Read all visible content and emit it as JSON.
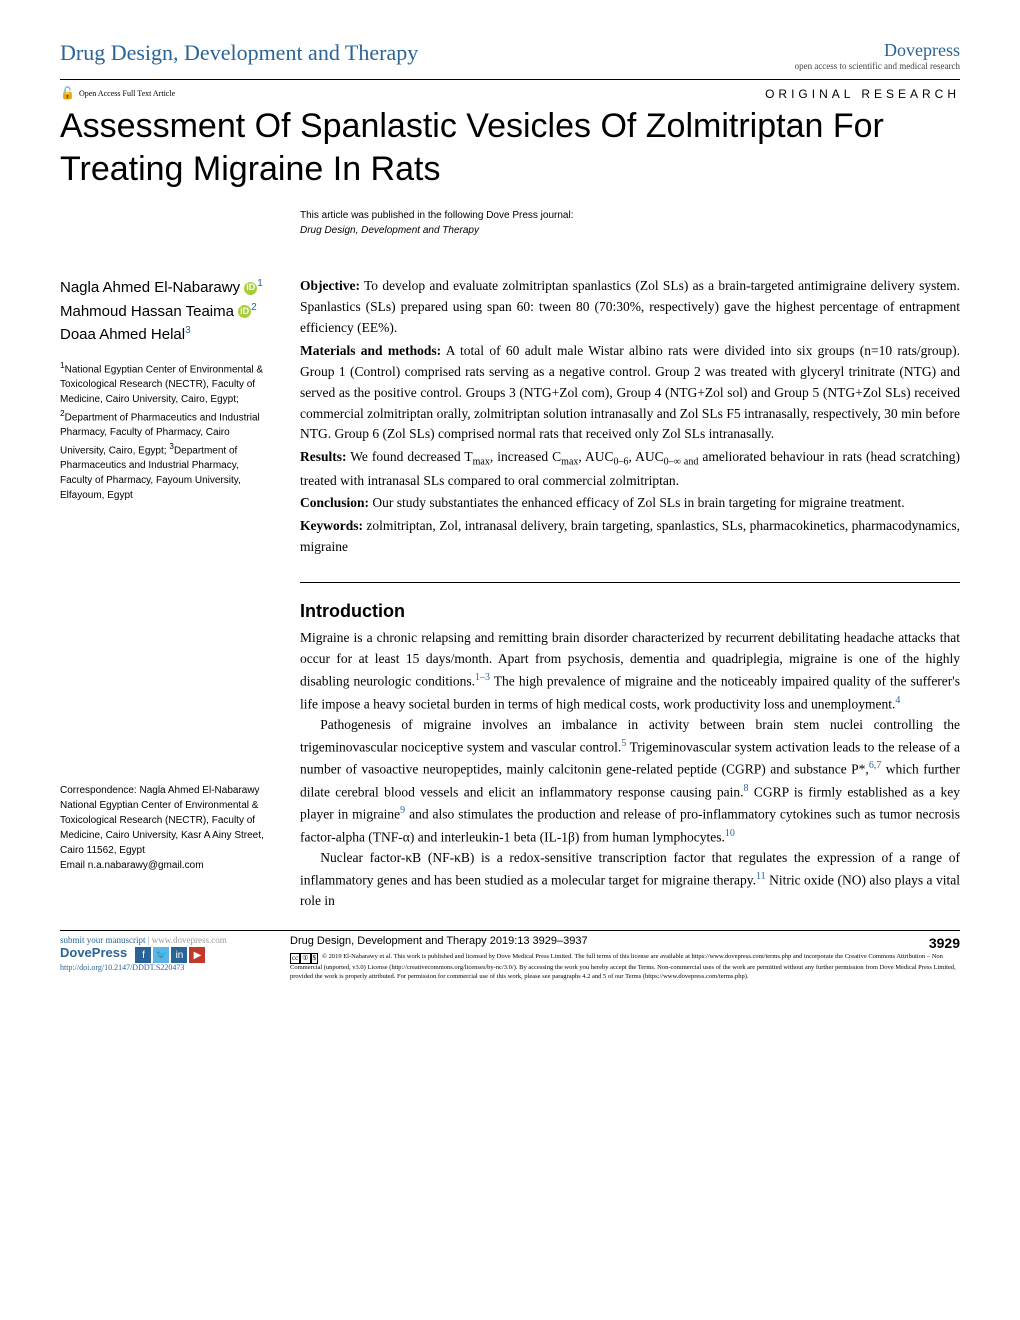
{
  "header": {
    "journal_name": "Drug Design, Development and Therapy",
    "brand": "Dovepress",
    "brand_sub": "open access to scientific and medical research",
    "open_access_label": "Open Access Full Text Article",
    "article_type": "ORIGINAL RESEARCH"
  },
  "title": "Assessment Of Spanlastic Vesicles Of Zolmitriptan For Treating Migraine In Rats",
  "pub_note": "This article was published in the following Dove Press journal:",
  "pub_note_journal": "Drug Design, Development and Therapy",
  "authors": [
    {
      "name": "Nagla Ahmed El-Nabarawy",
      "orcid": true,
      "aff": "1"
    },
    {
      "name": "Mahmoud Hassan Teaima",
      "orcid": true,
      "aff": "2"
    },
    {
      "name": "Doaa Ahmed Helal",
      "orcid": false,
      "aff": "3"
    }
  ],
  "affiliations_html": "<sup>1</sup>National Egyptian Center of Environmental & Toxicological Research (NECTR), Faculty of Medicine, Cairo University, Cairo, Egypt; <sup>2</sup>Department of Pharmaceutics and Industrial Pharmacy, Faculty of Pharmacy, Cairo University, Cairo, Egypt; <sup>3</sup>Department of Pharmaceutics and Industrial Pharmacy, Faculty of Pharmacy, Fayoum University, Elfayoum, Egypt",
  "correspondence": {
    "label": "Correspondence: Nagla Ahmed El-Nabarawy",
    "address": "National Egyptian Center of Environmental & Toxicological Research (NECTR), Faculty of Medicine, Cairo University, Kasr A Ainy Street, Cairo 11562, Egypt",
    "email": "Email n.a.nabarawy@gmail.com"
  },
  "abstract": {
    "objective_label": "Objective:",
    "objective": " To develop and evaluate zolmitriptan spanlastics (Zol SLs) as a brain-targeted antimigraine delivery system. Spanlastics (SLs) prepared using span 60: tween 80 (70:30%, respectively) gave the highest percentage of entrapment efficiency (EE%).",
    "methods_label": "Materials and methods:",
    "methods": " A total of 60 adult male Wistar albino rats were divided into six groups (n=10 rats/group). Group 1 (Control) comprised rats serving as a negative control. Group 2 was treated with glyceryl trinitrate (NTG) and served as the positive control. Groups 3 (NTG+Zol com), Group 4 (NTG+Zol sol) and Group 5 (NTG+Zol SLs) received commercial zolmitriptan orally, zolmitriptan solution intranasally and Zol SLs F5 intranasally, respectively, 30 min before NTG. Group 6 (Zol SLs) comprised normal rats that received only Zol SLs intranasally.",
    "results_label": "Results:",
    "results_pre": " We found decreased T",
    "results_post": " ameliorated behaviour in rats (head scratching) treated with intranasal SLs compared to oral commercial zolmitriptan.",
    "conclusion_label": "Conclusion:",
    "conclusion": " Our study substantiates the enhanced efficacy of Zol SLs in brain targeting for migraine treatment.",
    "keywords_label": "Keywords:",
    "keywords": " zolmitriptan, Zol, intranasal delivery, brain targeting, spanlastics, SLs, pharmacokinetics, pharmacodynamics, migraine"
  },
  "introduction": {
    "heading": "Introduction",
    "p1_a": "Migraine is a chronic relapsing and remitting brain disorder characterized by recurrent debilitating headache attacks that occur for at least 15 days/month. Apart from psychosis, dementia and quadriplegia, migraine is one of the highly disabling neurologic conditions.",
    "p1_ref1": "1–3",
    "p1_b": " The high prevalence of migraine and the noticeably impaired quality of the sufferer's life impose a heavy societal burden in terms of high medical costs, work productivity loss and unemployment.",
    "p1_ref2": "4",
    "p2_a": "Pathogenesis of migraine involves an imbalance in activity between brain stem nuclei controlling the trigeminovascular nociceptive system and vascular control.",
    "p2_ref1": "5",
    "p2_b": " Trigeminovascular system activation leads to the release of a number of vasoactive neuropeptides, mainly calcitonin gene-related peptide (CGRP) and substance P*,",
    "p2_ref2": "6,7",
    "p2_c": " which further dilate cerebral blood vessels and elicit an inflammatory response causing pain.",
    "p2_ref3": "8",
    "p2_d": " CGRP is firmly established as a key player in migraine",
    "p2_ref4": "9",
    "p2_e": " and also stimulates the production and release of pro-inflammatory cytokines such as tumor necrosis factor-alpha (TNF-α) and interleukin-1 beta (IL-1β) from human lymphocytes.",
    "p2_ref5": "10",
    "p3_a": "Nuclear factor-κB (NF-κB) is a redox-sensitive transcription factor that regulates the expression of a range of inflammatory genes and has been studied as a molecular target for migraine therapy.",
    "p3_ref1": "11",
    "p3_b": " Nitric oxide (NO) also plays a vital role in"
  },
  "footer": {
    "submit_manuscript": "submit your manuscript",
    "submit_url": " | www.dovepress.com",
    "dovepress": "DovePress",
    "doi": "http://doi.org/10.2147/DDDT.S220473",
    "citation": "Drug Design, Development and Therapy 2019:13 3929–3937",
    "page_num": "3929",
    "license": "© 2019 El-Nabarawy et al. This work is published and licensed by Dove Medical Press Limited. The full terms of this license are available at https://www.dovepress.com/terms.php and incorporate the Creative Commons Attribution – Non Commercial (unported, v3.0) License (http://creativecommons.org/licenses/by-nc/3.0/). By accessing the work you hereby accept the Terms. Non-commercial uses of the work are permitted without any further permission from Dove Medical Press Limited, provided the work is properly attributed. For permission for commercial use of this work, please see paragraphs 4.2 and 5 of our Terms (https://www.dovepress.com/terms.php)."
  },
  "colors": {
    "link": "#2a6496",
    "orcid": "#a6ce39",
    "lock": "#e67e22"
  }
}
